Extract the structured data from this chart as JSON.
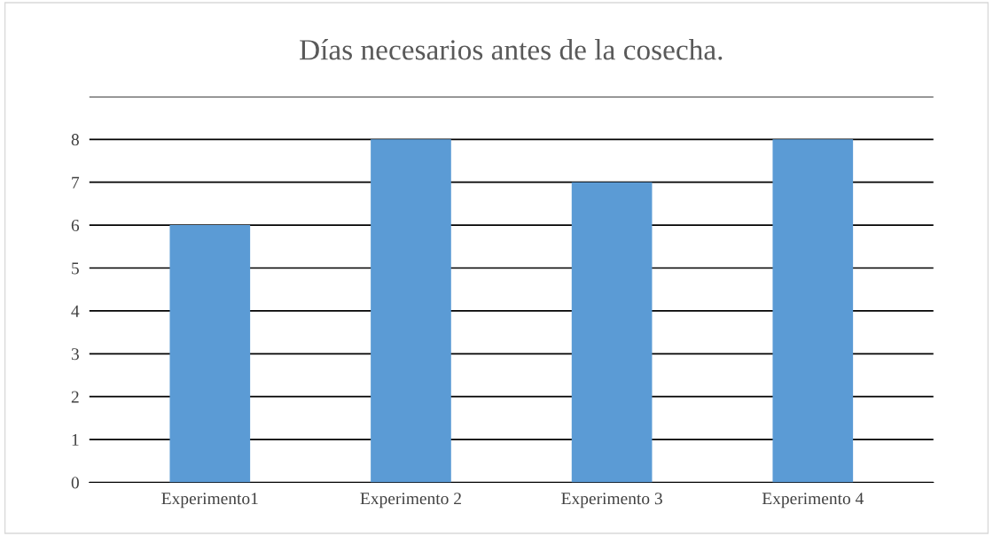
{
  "chart_data": {
    "type": "bar",
    "title": "Días necesarios antes de la cosecha.",
    "categories": [
      "Experimento1",
      "Experimento 2",
      "Experimento 3",
      "Experimento 4"
    ],
    "values": [
      6,
      8,
      7,
      8
    ],
    "color": "#5b9bd5",
    "ylim": [
      0,
      9
    ],
    "yticks": [
      0,
      1,
      2,
      3,
      4,
      5,
      6,
      7,
      8,
      {
        "value": 9,
        "label": null
      }
    ],
    "grid": "y",
    "legend": false
  }
}
